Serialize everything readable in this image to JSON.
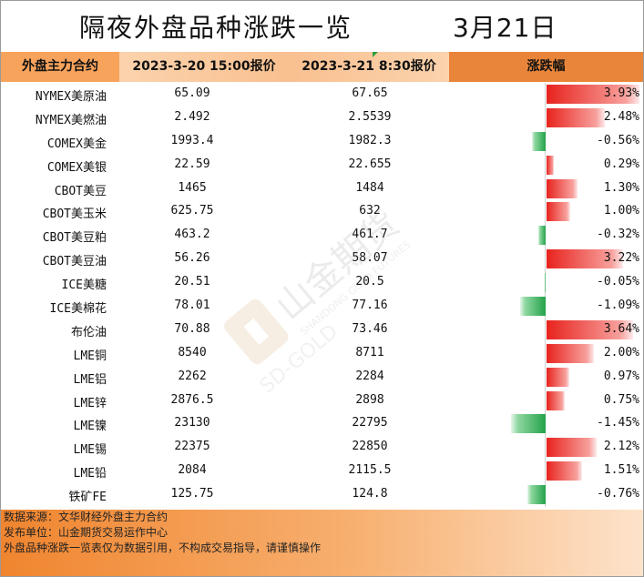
{
  "title": "隔夜外盘品种涨跌一览",
  "date": "3月21日",
  "headers": [
    "外盘主力合约",
    "2023-3-20 15:00报价",
    "2023-3-21 8:30报价",
    "涨跌幅"
  ],
  "rows": [
    {
      "name": "NYMEX美原油",
      "prev": "65.09",
      "curr": "67.65",
      "pct": "3.93%",
      "change": 3.93
    },
    {
      "name": "NYMEX美燃油",
      "prev": "2.492",
      "curr": "2.5539",
      "pct": "2.48%",
      "change": 2.48
    },
    {
      "name": "COMEX美金",
      "prev": "1993.4",
      "curr": "1982.3",
      "pct": "-0.56%",
      "change": -0.56
    },
    {
      "name": "COMEX美银",
      "prev": "22.59",
      "curr": "22.655",
      "pct": "0.29%",
      "change": 0.29
    },
    {
      "name": "CBOT美豆",
      "prev": "1465",
      "curr": "1484",
      "pct": "1.30%",
      "change": 1.3
    },
    {
      "name": "CBOT美玉米",
      "prev": "625.75",
      "curr": "632",
      "pct": "1.00%",
      "change": 1.0
    },
    {
      "name": "CBOT美豆粕",
      "prev": "463.2",
      "curr": "461.7",
      "pct": "-0.32%",
      "change": -0.32
    },
    {
      "name": "CBOT美豆油",
      "prev": "56.26",
      "curr": "58.07",
      "pct": "3.22%",
      "change": 3.22
    },
    {
      "name": "ICE美糖",
      "prev": "20.51",
      "curr": "20.5",
      "pct": "-0.05%",
      "change": -0.05
    },
    {
      "name": "ICE美棉花",
      "prev": "78.01",
      "curr": "77.16",
      "pct": "-1.09%",
      "change": -1.09
    },
    {
      "name": "布伦油",
      "prev": "70.88",
      "curr": "73.46",
      "pct": "3.64%",
      "change": 3.64
    },
    {
      "name": "LME铜",
      "prev": "8540",
      "curr": "8711",
      "pct": "2.00%",
      "change": 2.0
    },
    {
      "name": "LME铝",
      "prev": "2262",
      "curr": "2284",
      "pct": "0.97%",
      "change": 0.97
    },
    {
      "name": "LME锌",
      "prev": "2876.5",
      "curr": "2898",
      "pct": "0.75%",
      "change": 0.75
    },
    {
      "name": "LME镍",
      "prev": "23130",
      "curr": "22795",
      "pct": "-1.45%",
      "change": -1.45
    },
    {
      "name": "LME锡",
      "prev": "22375",
      "curr": "22850",
      "pct": "2.12%",
      "change": 2.12
    },
    {
      "name": "LME铅",
      "prev": "2084",
      "curr": "2115.5",
      "pct": "1.51%",
      "change": 1.51
    },
    {
      "name": "铁矿FE",
      "prev": "125.75",
      "curr": "124.8",
      "pct": "-0.76%",
      "change": -0.76
    }
  ],
  "footer": [
    "数据来源：文华财经外盘主力合约",
    "发布单位：山金期货交易运作中心",
    "外盘品种涨跌一览表仅为数据引用，不构成交易指导，请谨慎操作"
  ],
  "watermark": {
    "logo_text": "山金期货",
    "sub_text": "SHANDONG GOLD FUTURES",
    "mark": "SD-GOLD"
  },
  "colors": {
    "up": "#e8231e",
    "down": "#22a24a",
    "header": "#f7a35c",
    "footer": "#f0852f"
  }
}
